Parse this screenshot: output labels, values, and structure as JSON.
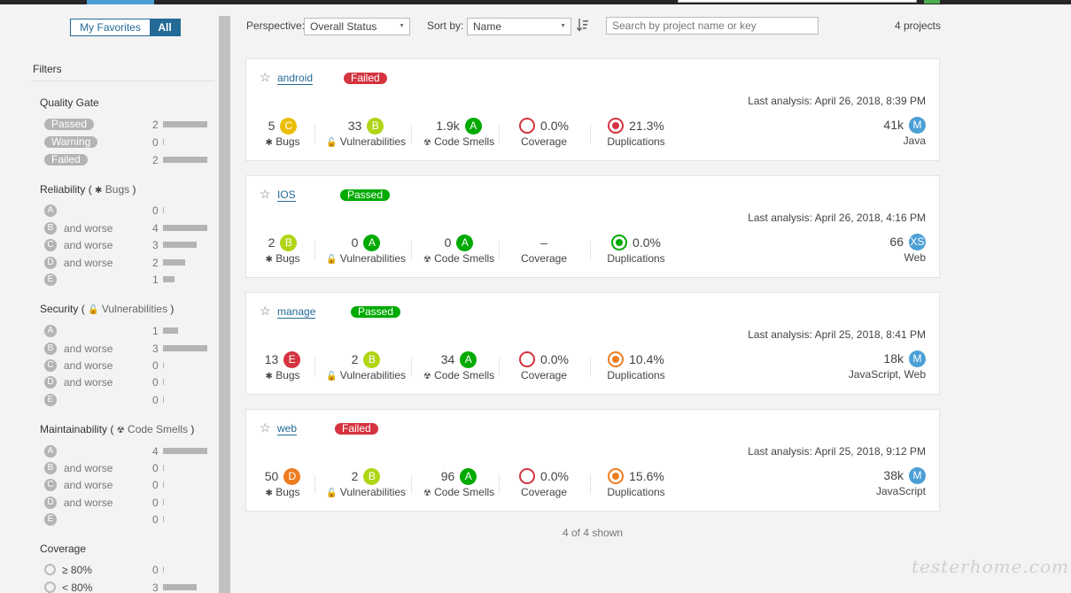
{
  "sidebar": {
    "fav_mine": "My Favorites",
    "fav_all": "All",
    "filters_title": "Filters",
    "quality_gate": {
      "title": "Quality Gate",
      "items": [
        {
          "label": "Passed",
          "count": "2",
          "fraction": 1.0
        },
        {
          "label": "Warning",
          "count": "0",
          "fraction": 0
        },
        {
          "label": "Failed",
          "count": "2",
          "fraction": 1.0
        }
      ]
    },
    "reliability": {
      "title": "Reliability",
      "sub": "Bugs",
      "items": [
        {
          "rating": "A",
          "worse": "",
          "count": "0",
          "fraction": 0
        },
        {
          "rating": "B",
          "worse": "and worse",
          "count": "4",
          "fraction": 1.0
        },
        {
          "rating": "C",
          "worse": "and worse",
          "count": "3",
          "fraction": 0.75
        },
        {
          "rating": "D",
          "worse": "and worse",
          "count": "2",
          "fraction": 0.5
        },
        {
          "rating": "E",
          "worse": "",
          "count": "1",
          "fraction": 0.25
        }
      ]
    },
    "security": {
      "title": "Security",
      "sub": "Vulnerabilities",
      "items": [
        {
          "rating": "A",
          "worse": "",
          "count": "1",
          "fraction": 0.33
        },
        {
          "rating": "B",
          "worse": "and worse",
          "count": "3",
          "fraction": 1.0
        },
        {
          "rating": "C",
          "worse": "and worse",
          "count": "0",
          "fraction": 0
        },
        {
          "rating": "D",
          "worse": "and worse",
          "count": "0",
          "fraction": 0
        },
        {
          "rating": "E",
          "worse": "",
          "count": "0",
          "fraction": 0
        }
      ]
    },
    "maintainability": {
      "title": "Maintainability",
      "sub": "Code Smells",
      "items": [
        {
          "rating": "A",
          "worse": "",
          "count": "4",
          "fraction": 1.0
        },
        {
          "rating": "B",
          "worse": "and worse",
          "count": "0",
          "fraction": 0
        },
        {
          "rating": "C",
          "worse": "and worse",
          "count": "0",
          "fraction": 0
        },
        {
          "rating": "D",
          "worse": "and worse",
          "count": "0",
          "fraction": 0
        },
        {
          "rating": "E",
          "worse": "",
          "count": "0",
          "fraction": 0
        }
      ]
    },
    "coverage": {
      "title": "Coverage",
      "items": [
        {
          "label": "≥ 80%",
          "count": "0",
          "fraction": 0
        },
        {
          "label": "< 80%",
          "count": "3",
          "fraction": 0.75
        }
      ]
    }
  },
  "toolbar": {
    "perspective_label": "Perspective:",
    "perspective_value": "Overall Status",
    "sort_label": "Sort by:",
    "sort_value": "Name",
    "search_placeholder": "Search by project name or key",
    "project_count": "4 projects"
  },
  "projects": [
    {
      "name": "android",
      "gate": "Failed",
      "gate_status": "failed",
      "last_analysis": "Last analysis: April 26, 2018, 8:39 PM",
      "bugs": "5",
      "bugs_rating": "C",
      "bugs_label": "Bugs",
      "vulns": "33",
      "vulns_rating": "B",
      "vulns_label": "Vulnerabilities",
      "smells": "1.9k",
      "smells_rating": "A",
      "smells_label": "Code Smells",
      "coverage": "0.0%",
      "coverage_label": "Coverage",
      "duplications": "21.3%",
      "dup_color": "#d4333f",
      "dup_label": "Duplications",
      "size": "41k",
      "size_rating": "M",
      "languages": "Java"
    },
    {
      "name": "IOS",
      "gate": "Passed",
      "gate_status": "passed",
      "last_analysis": "Last analysis: April 26, 2018, 4:16 PM",
      "bugs": "2",
      "bugs_rating": "B",
      "bugs_label": "Bugs",
      "vulns": "0",
      "vulns_rating": "A",
      "vulns_label": "Vulnerabilities",
      "smells": "0",
      "smells_rating": "A",
      "smells_label": "Code Smells",
      "coverage": "–",
      "coverage_label": "Coverage",
      "duplications": "0.0%",
      "dup_color": "#00aa00",
      "dup_label": "Duplications",
      "size": "66",
      "size_rating": "XS",
      "languages": "Web"
    },
    {
      "name": "manage",
      "gate": "Passed",
      "gate_status": "passed",
      "last_analysis": "Last analysis: April 25, 2018, 8:41 PM",
      "bugs": "13",
      "bugs_rating": "E",
      "bugs_label": "Bugs",
      "vulns": "2",
      "vulns_rating": "B",
      "vulns_label": "Vulnerabilities",
      "smells": "34",
      "smells_rating": "A",
      "smells_label": "Code Smells",
      "coverage": "0.0%",
      "coverage_label": "Coverage",
      "duplications": "10.4%",
      "dup_color": "#ed7d20",
      "dup_label": "Duplications",
      "size": "18k",
      "size_rating": "M",
      "languages": "JavaScript, Web"
    },
    {
      "name": "web",
      "gate": "Failed",
      "gate_status": "failed",
      "last_analysis": "Last analysis: April 25, 2018, 9:12 PM",
      "bugs": "50",
      "bugs_rating": "D",
      "bugs_label": "Bugs",
      "vulns": "2",
      "vulns_rating": "B",
      "vulns_label": "Vulnerabilities",
      "smells": "96",
      "smells_rating": "A",
      "smells_label": "Code Smells",
      "coverage": "0.0%",
      "coverage_label": "Coverage",
      "duplications": "15.6%",
      "dup_color": "#ed7d20",
      "dup_label": "Duplications",
      "size": "38k",
      "size_rating": "M",
      "languages": "JavaScript"
    }
  ],
  "footer": {
    "shown": "4 of 4 shown"
  },
  "watermark": "testerhome.com",
  "colors": {
    "accent": "#236a97",
    "passed": "#00aa00",
    "failed": "#d4333f",
    "sidebar_pill": "#b4b4b4"
  }
}
